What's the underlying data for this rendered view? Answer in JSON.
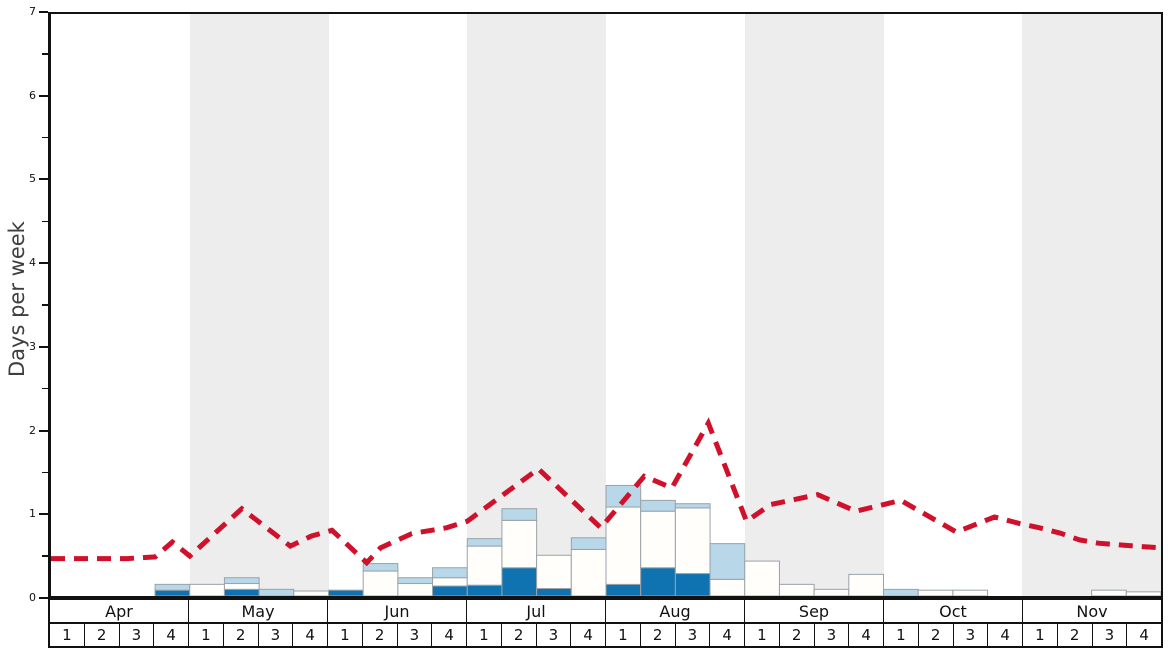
{
  "chart_data": {
    "type": "bar",
    "subtype": "stacked-weekly-bars-with-dashed-line-overlay",
    "title": "",
    "ylabel": "Days per week",
    "legend": "none",
    "grid": false,
    "y_axis": {
      "min": 0,
      "max": 7,
      "major_tick_labels": [
        "0",
        "1",
        "2",
        "3",
        "4",
        "5",
        "6",
        "7"
      ],
      "minor_tick_step": 0.5
    },
    "x_axis": {
      "months": [
        "Apr",
        "May",
        "Jun",
        "Jul",
        "Aug",
        "Sep",
        "Oct",
        "Nov"
      ],
      "week_labels": [
        "1",
        "2",
        "3",
        "4"
      ],
      "shaded_months": [
        "May",
        "Jul",
        "Sep",
        "Nov"
      ],
      "shade_color": "#ededed"
    },
    "series": [
      {
        "name": "dark-blue-days",
        "color": "#0f73b2",
        "values": [
          0,
          0,
          0,
          0.07,
          0,
          0.08,
          0,
          0,
          0.07,
          0,
          0,
          0.12,
          0.13,
          0.34,
          0.09,
          0,
          0.14,
          0.34,
          0.27,
          0,
          0,
          0,
          0,
          0,
          0,
          0,
          0,
          0,
          0,
          0,
          0,
          0
        ]
      },
      {
        "name": "white-days",
        "color": "#fffefb",
        "values": [
          0,
          0,
          0,
          0,
          0.14,
          0.07,
          0,
          0.06,
          0,
          0.3,
          0.15,
          0.1,
          0.47,
          0.57,
          0.4,
          0.56,
          0.93,
          0.68,
          0.79,
          0.2,
          0.42,
          0.14,
          0.08,
          0.26,
          0,
          0.07,
          0.07,
          0,
          0,
          0,
          0.07,
          0.05
        ]
      },
      {
        "name": "light-blue-days",
        "color": "#b8d7e8",
        "values": [
          0,
          0,
          0,
          0.07,
          0,
          0.07,
          0.08,
          0,
          0,
          0.09,
          0.07,
          0.12,
          0.09,
          0.14,
          0,
          0.14,
          0.26,
          0.13,
          0.05,
          0.43,
          0,
          0,
          0,
          0,
          0.08,
          0,
          0,
          0,
          0,
          0,
          0,
          0
        ]
      }
    ],
    "line_series": {
      "name": "red-dashed-line",
      "color": "#d0112b",
      "stroke_width": 5,
      "dash": [
        14,
        9
      ],
      "points_x_weeks_y_days": [
        [
          0,
          0.45
        ],
        [
          2.2,
          0.45
        ],
        [
          3.0,
          0.47
        ],
        [
          3.5,
          0.65
        ],
        [
          4.0,
          0.48
        ],
        [
          5.5,
          1.05
        ],
        [
          6.9,
          0.6
        ],
        [
          7.5,
          0.72
        ],
        [
          8.1,
          0.79
        ],
        [
          9.1,
          0.4
        ],
        [
          9.5,
          0.58
        ],
        [
          10.4,
          0.75
        ],
        [
          11.4,
          0.82
        ],
        [
          12.0,
          0.9
        ],
        [
          14.05,
          1.53
        ],
        [
          15.85,
          0.82
        ],
        [
          17.1,
          1.44
        ],
        [
          17.9,
          1.3
        ],
        [
          18.95,
          2.08
        ],
        [
          20.05,
          0.9
        ],
        [
          20.75,
          1.1
        ],
        [
          22.1,
          1.22
        ],
        [
          23.2,
          1.02
        ],
        [
          24.5,
          1.15
        ],
        [
          26.1,
          0.77
        ],
        [
          27.2,
          0.95
        ],
        [
          27.9,
          0.875
        ],
        [
          28.5,
          0.82
        ],
        [
          29.1,
          0.755
        ],
        [
          29.65,
          0.675
        ],
        [
          30.2,
          0.635
        ],
        [
          30.8,
          0.615
        ],
        [
          31.4,
          0.595
        ],
        [
          32,
          0.58
        ]
      ]
    },
    "bar_border_color": "#9aa2a8",
    "frame_color": "#111111"
  }
}
